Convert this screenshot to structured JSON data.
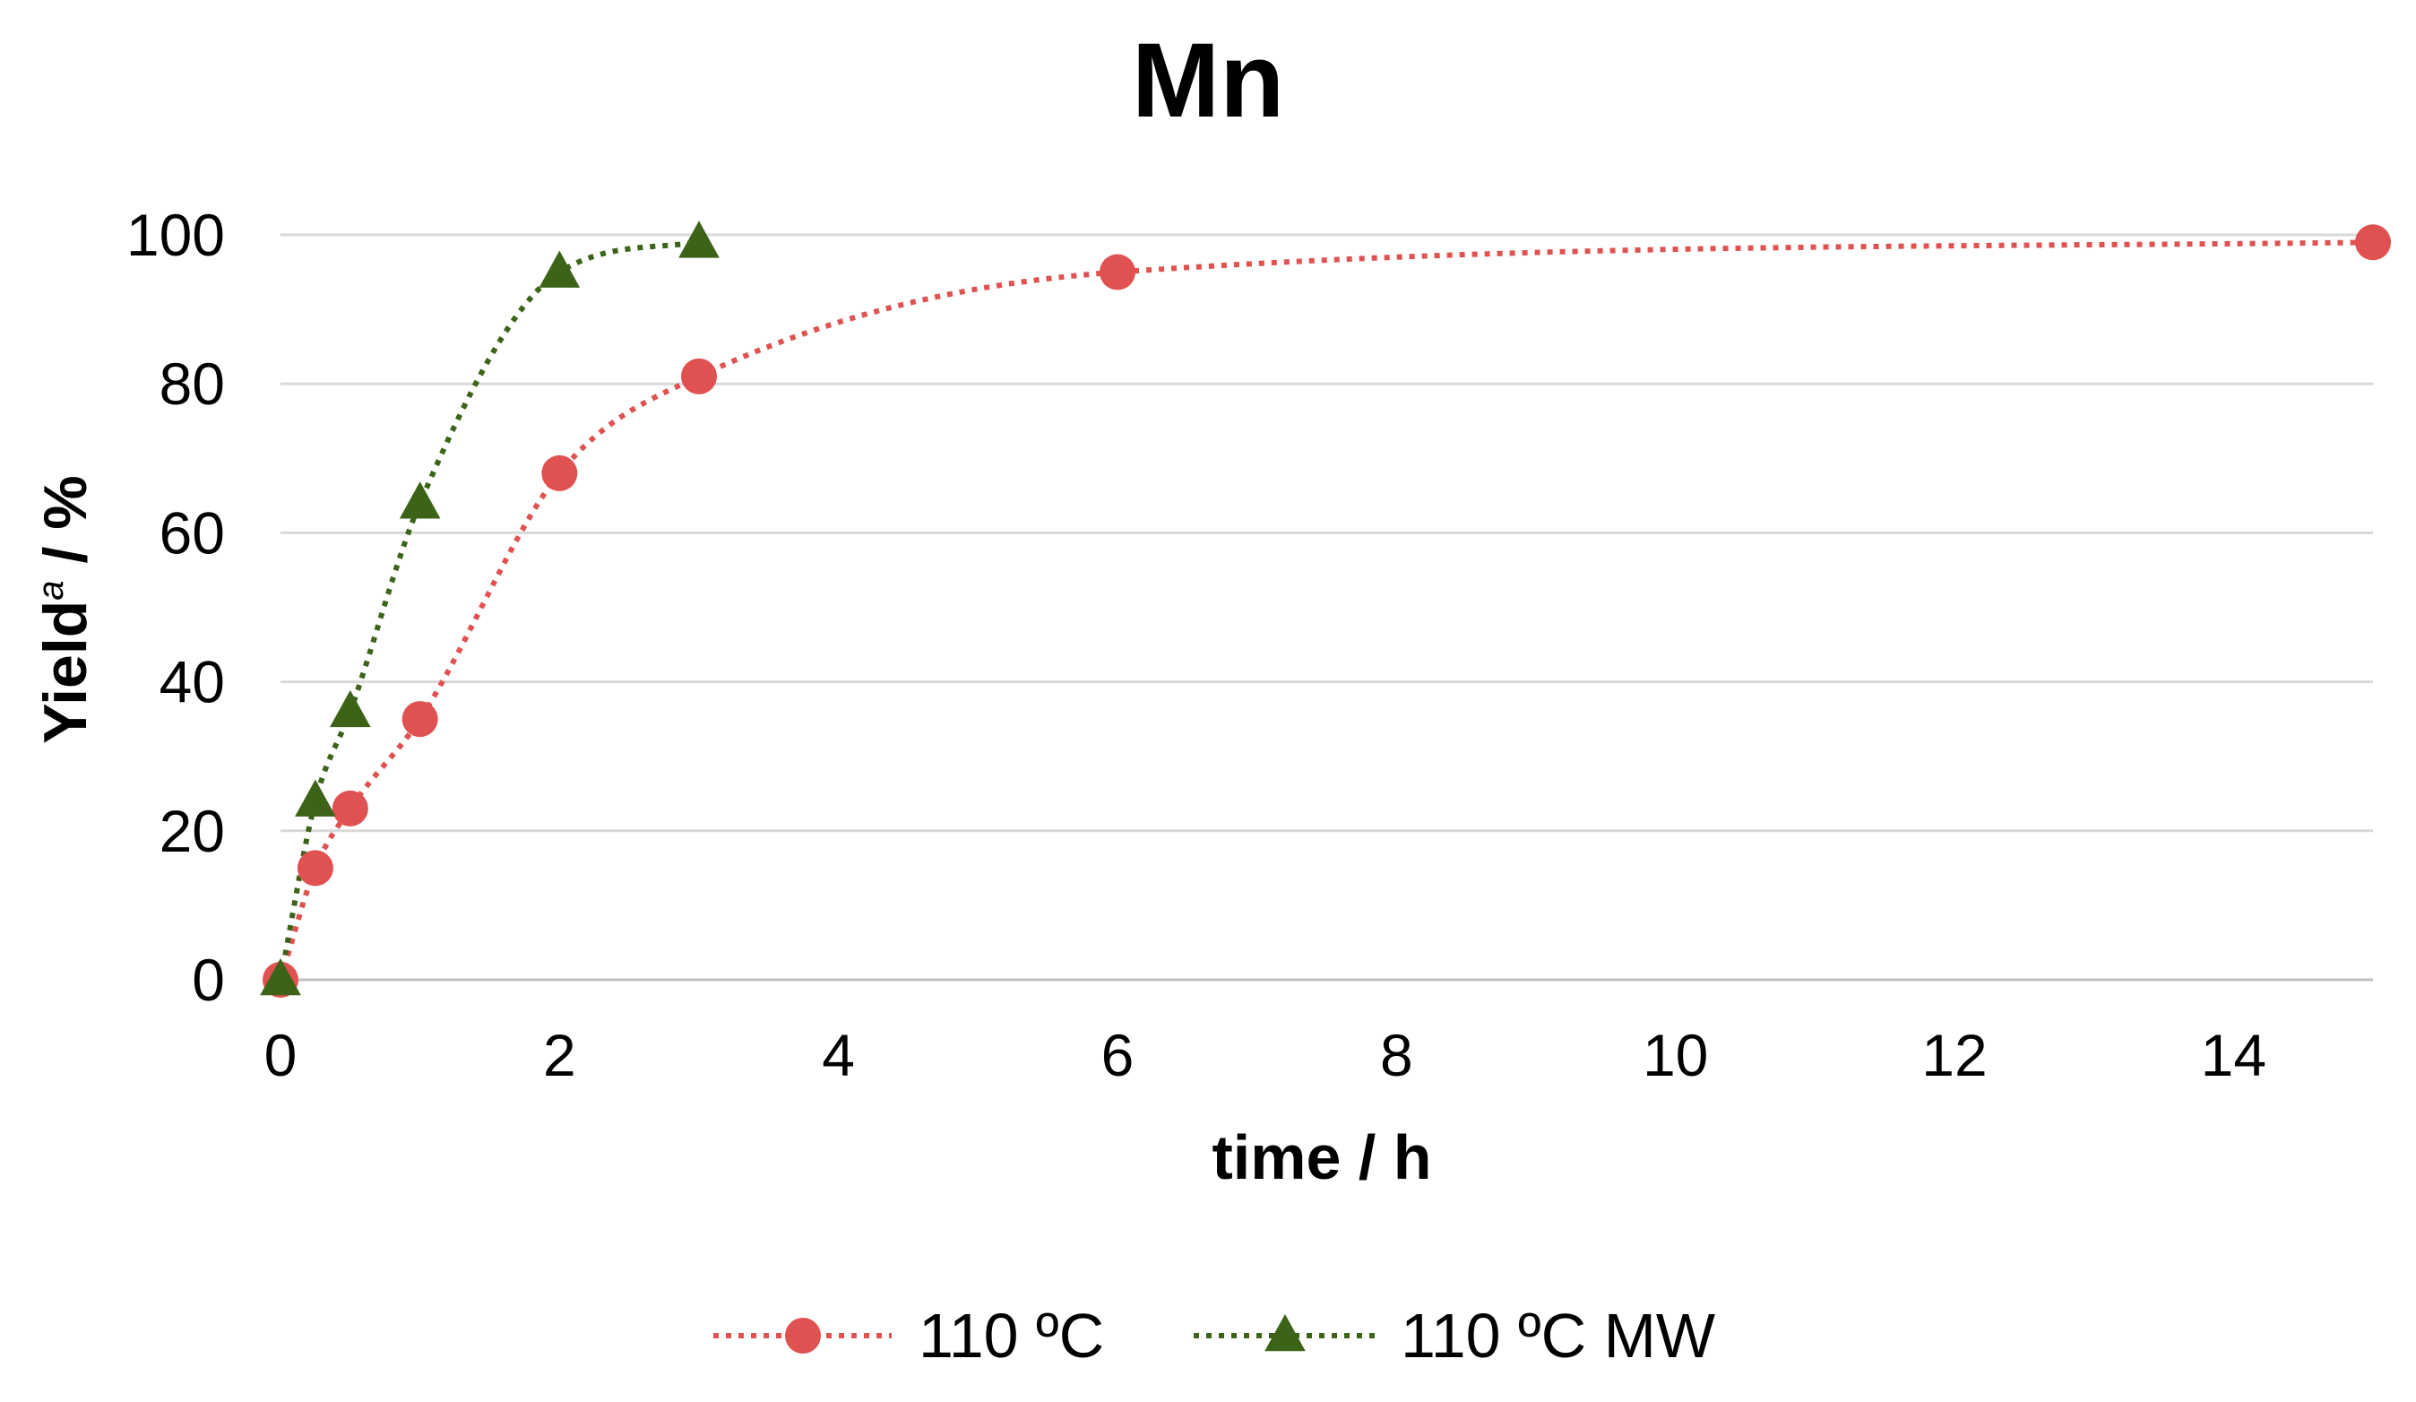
{
  "chart_data": {
    "type": "line",
    "title": "Mn",
    "xlabel": "time / h",
    "ylabel": {
      "main": "Yield",
      "superscript": "a",
      "suffix": " / %"
    },
    "xlim": [
      0,
      15
    ],
    "ylim": [
      0,
      100
    ],
    "xticks": [
      0,
      2,
      4,
      6,
      8,
      10,
      12,
      14
    ],
    "yticks": [
      0,
      20,
      40,
      60,
      80,
      100
    ],
    "grid": "horizontal",
    "legend_position": "bottom-center",
    "series": [
      {
        "name": "110 ºC",
        "marker": "circle",
        "line_style": "dotted-smooth",
        "color": "#e05252",
        "x": [
          0,
          0.25,
          0.5,
          1,
          2,
          3,
          6,
          15
        ],
        "y": [
          0,
          15,
          23,
          35,
          68,
          81,
          95,
          99
        ]
      },
      {
        "name": "110 ºC MW",
        "marker": "triangle",
        "line_style": "dotted-smooth",
        "color": "#3d6319",
        "x": [
          0,
          0.25,
          0.5,
          1,
          2,
          3
        ],
        "y": [
          0,
          24,
          36,
          64,
          95,
          99
        ]
      }
    ]
  }
}
